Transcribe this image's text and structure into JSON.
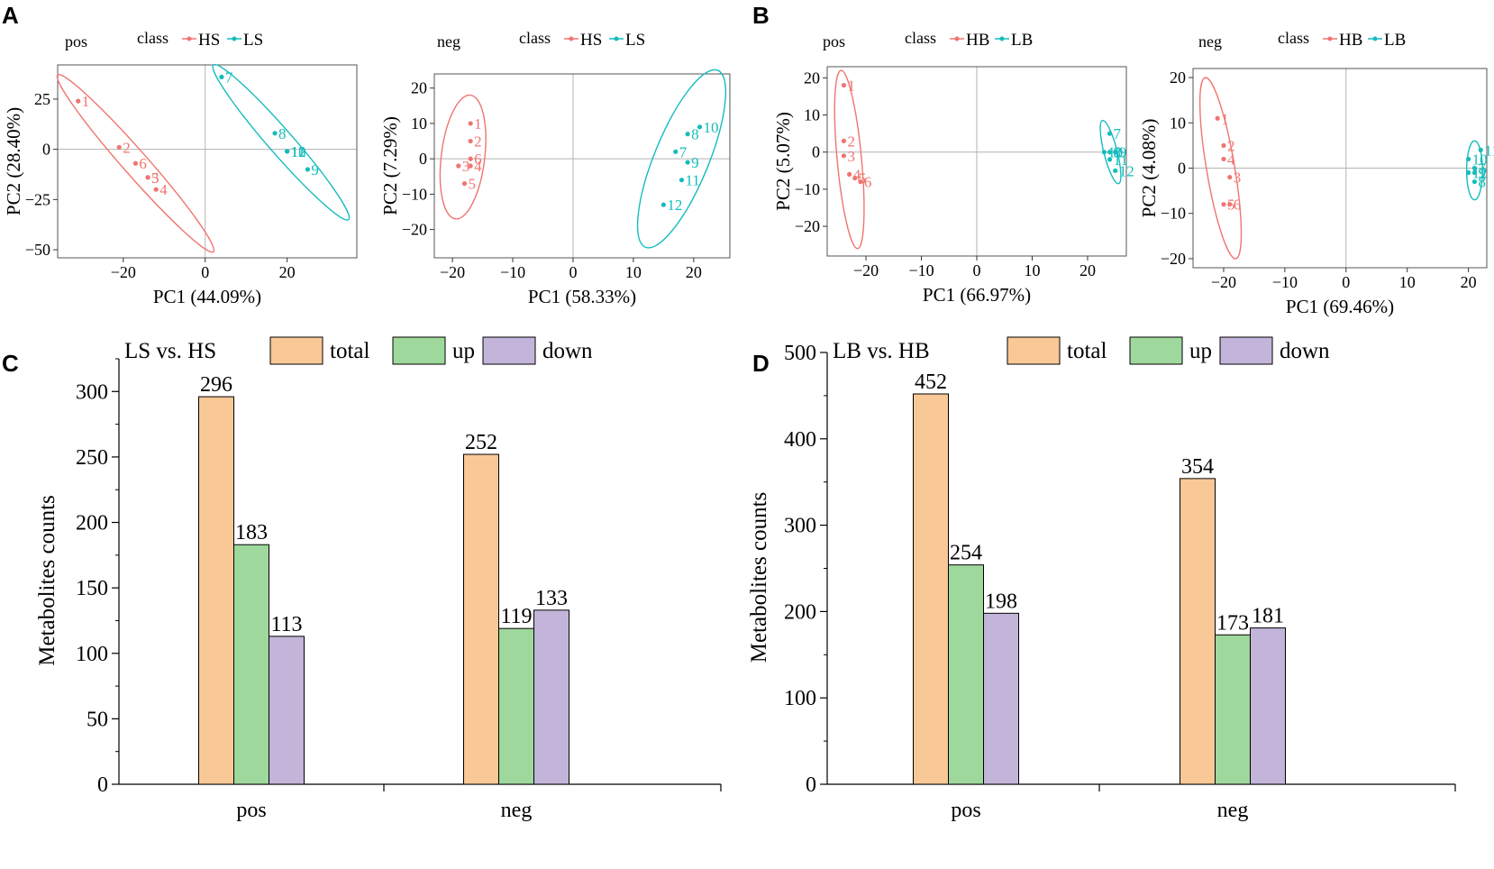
{
  "figure": {
    "panels": [
      {
        "letter": "A"
      },
      {
        "letter": "B"
      },
      {
        "letter": "C"
      },
      {
        "letter": "D"
      }
    ]
  },
  "colors": {
    "pca_group_a": "#f07470",
    "pca_group_b": "#15bcbc",
    "bar_total": "#f9c897",
    "bar_up": "#9fd89d",
    "bar_down": "#c3b5d9",
    "axis": "#000000",
    "zero_line": "#b3b3b3"
  },
  "chart_data": [
    {
      "type": "scatter",
      "panel": "A",
      "title": "pos",
      "legend_title": "class",
      "legend": [
        "HS",
        "LS"
      ],
      "xlabel": "PC1 (44.09%)",
      "ylabel": "PC2 (28.40%)",
      "xlim": [
        -36,
        37
      ],
      "ylim": [
        -54,
        42
      ],
      "xticks": [
        -20,
        0,
        20
      ],
      "yticks": [
        -50,
        -25,
        0,
        25
      ],
      "series": [
        {
          "name": "HS",
          "points": [
            {
              "label": "1",
              "x": -31,
              "y": 24
            },
            {
              "label": "2",
              "x": -21,
              "y": 1
            },
            {
              "label": "3",
              "x": -14,
              "y": -14
            },
            {
              "label": "4",
              "x": -12,
              "y": -20
            },
            {
              "label": "5",
              "x": -14,
              "y": -14
            },
            {
              "label": "6",
              "x": -17,
              "y": -7
            }
          ],
          "ellipse": {
            "cx": -16,
            "cy": -7,
            "p1": [
              -36,
              37
            ],
            "p2": [
              2,
              -51
            ],
            "w": 3
          }
        },
        {
          "name": "LS",
          "points": [
            {
              "label": "7",
              "x": 4,
              "y": 36
            },
            {
              "label": "8",
              "x": 17,
              "y": 8
            },
            {
              "label": "9",
              "x": 25,
              "y": -10
            },
            {
              "label": "10",
              "x": 20,
              "y": -1
            },
            {
              "label": "11",
              "x": 20,
              "y": -1
            },
            {
              "label": "12",
              "x": 20,
              "y": -1
            }
          ],
          "ellipse": {
            "p1": [
              2,
              42
            ],
            "p2": [
              35,
              -35
            ],
            "w": 3
          }
        }
      ]
    },
    {
      "type": "scatter",
      "panel": "A",
      "title": "neg",
      "legend_title": "class",
      "legend": [
        "HS",
        "LS"
      ],
      "xlabel": "PC1 (58.33%)",
      "ylabel": "PC2 (7.29%)",
      "xlim": [
        -23,
        26
      ],
      "ylim": [
        -28,
        24
      ],
      "xticks": [
        -20,
        -10,
        0,
        10,
        20
      ],
      "yticks": [
        -20,
        -10,
        0,
        10,
        20
      ],
      "series": [
        {
          "name": "HS",
          "points": [
            {
              "label": "1",
              "x": -17,
              "y": 10
            },
            {
              "label": "2",
              "x": -17,
              "y": 5
            },
            {
              "label": "3",
              "x": -19,
              "y": -2
            },
            {
              "label": "4",
              "x": -17,
              "y": -2
            },
            {
              "label": "5",
              "x": -18,
              "y": -7
            },
            {
              "label": "6",
              "x": -17,
              "y": 0
            }
          ],
          "ellipse": {
            "p1": [
              -17,
              18
            ],
            "p2": [
              -19.5,
              -17
            ],
            "w": 3.6
          }
        },
        {
          "name": "LS",
          "points": [
            {
              "label": "7",
              "x": 17,
              "y": 2
            },
            {
              "label": "8",
              "x": 19,
              "y": 7
            },
            {
              "label": "9",
              "x": 19,
              "y": -1
            },
            {
              "label": "10",
              "x": 21,
              "y": 9
            },
            {
              "label": "11",
              "x": 18,
              "y": -6
            },
            {
              "label": "12",
              "x": 15,
              "y": -13
            }
          ],
          "ellipse": {
            "p1": [
              24,
              25
            ],
            "p2": [
              12,
              -25
            ],
            "w": 4.5
          }
        }
      ]
    },
    {
      "type": "scatter",
      "panel": "B",
      "title": "pos",
      "legend_title": "class",
      "legend": [
        "HB",
        "LB"
      ],
      "xlabel": "PC1 (66.97%)",
      "ylabel": "PC2 (5.07%)",
      "xlim": [
        -27,
        27
      ],
      "ylim": [
        -28,
        23
      ],
      "xticks": [
        -20,
        -10,
        0,
        10,
        20
      ],
      "yticks": [
        -20,
        -10,
        0,
        10,
        20
      ],
      "series": [
        {
          "name": "HB",
          "points": [
            {
              "label": "1",
              "x": -24,
              "y": 18
            },
            {
              "label": "2",
              "x": -24,
              "y": 3
            },
            {
              "label": "3",
              "x": -24,
              "y": -1
            },
            {
              "label": "4",
              "x": -23,
              "y": -6
            },
            {
              "label": "5",
              "x": -22,
              "y": -7
            },
            {
              "label": "6",
              "x": -21,
              "y": -8
            }
          ],
          "ellipse": {
            "p1": [
              -24.5,
              22
            ],
            "p2": [
              -21.5,
              -26
            ],
            "w": 2.2
          }
        },
        {
          "name": "LB",
          "points": [
            {
              "label": "7",
              "x": 24,
              "y": 5
            },
            {
              "label": "8",
              "x": 24,
              "y": 0
            },
            {
              "label": "9",
              "x": 25,
              "y": 0
            },
            {
              "label": "10",
              "x": 23,
              "y": 0
            },
            {
              "label": "11",
              "x": 24,
              "y": -2
            },
            {
              "label": "12",
              "x": 25,
              "y": -5
            }
          ],
          "ellipse": {
            "p1": [
              22.7,
              8.5
            ],
            "p2": [
              25.6,
              -8.5
            ],
            "w": 1.2
          }
        }
      ]
    },
    {
      "type": "scatter",
      "panel": "B",
      "title": "neg",
      "legend_title": "class",
      "legend": [
        "HB",
        "LB"
      ],
      "xlabel": "PC1 (69.46%)",
      "ylabel": "PC2 (4.08%)",
      "xlim": [
        -25,
        23
      ],
      "ylim": [
        -22,
        22
      ],
      "xticks": [
        -20,
        -10,
        0,
        10,
        20
      ],
      "yticks": [
        -20,
        -10,
        0,
        10,
        20
      ],
      "series": [
        {
          "name": "HB",
          "points": [
            {
              "label": "1",
              "x": -21,
              "y": 11
            },
            {
              "label": "2",
              "x": -20,
              "y": 5
            },
            {
              "label": "3",
              "x": -19,
              "y": -2
            },
            {
              "label": "4",
              "x": -20,
              "y": 2
            },
            {
              "label": "5",
              "x": -20,
              "y": -8
            },
            {
              "label": "6",
              "x": -19,
              "y": -8
            }
          ],
          "ellipse": {
            "p1": [
              -23,
              20
            ],
            "p2": [
              -18,
              -20
            ],
            "w": 2.3
          }
        },
        {
          "name": "LB",
          "points": [
            {
              "label": "7",
              "x": 21,
              "y": 0
            },
            {
              "label": "8",
              "x": 21,
              "y": -3
            },
            {
              "label": "9",
              "x": 21,
              "y": -1
            },
            {
              "label": "10",
              "x": 20,
              "y": 2
            },
            {
              "label": "11",
              "x": 22,
              "y": 4
            },
            {
              "label": "12",
              "x": 20,
              "y": -1
            }
          ],
          "ellipse": {
            "p1": [
              21,
              6
            ],
            "p2": [
              21,
              -7
            ],
            "w": 1.3
          }
        }
      ]
    },
    {
      "type": "bar",
      "panel": "C",
      "title": "LS vs. HS",
      "xlabel": "",
      "ylabel": "Metabolites counts",
      "categories": [
        "pos",
        "neg"
      ],
      "series": [
        {
          "name": "total",
          "values": [
            296,
            252
          ]
        },
        {
          "name": "up",
          "values": [
            183,
            119
          ]
        },
        {
          "name": "down",
          "values": [
            113,
            133
          ]
        }
      ],
      "ylim": [
        0,
        325
      ],
      "yticks": [
        0,
        50,
        100,
        150,
        200,
        250,
        300
      ]
    },
    {
      "type": "bar",
      "panel": "D",
      "title": "LB vs. HB",
      "xlabel": "",
      "ylabel": "Metabolites counts",
      "categories": [
        "pos",
        "neg"
      ],
      "series": [
        {
          "name": "total",
          "values": [
            452,
            354
          ]
        },
        {
          "name": "up",
          "values": [
            254,
            173
          ]
        },
        {
          "name": "down",
          "values": [
            198,
            181
          ]
        }
      ],
      "ylim": [
        0,
        500
      ],
      "yticks": [
        0,
        100,
        200,
        300,
        400,
        500
      ]
    }
  ]
}
